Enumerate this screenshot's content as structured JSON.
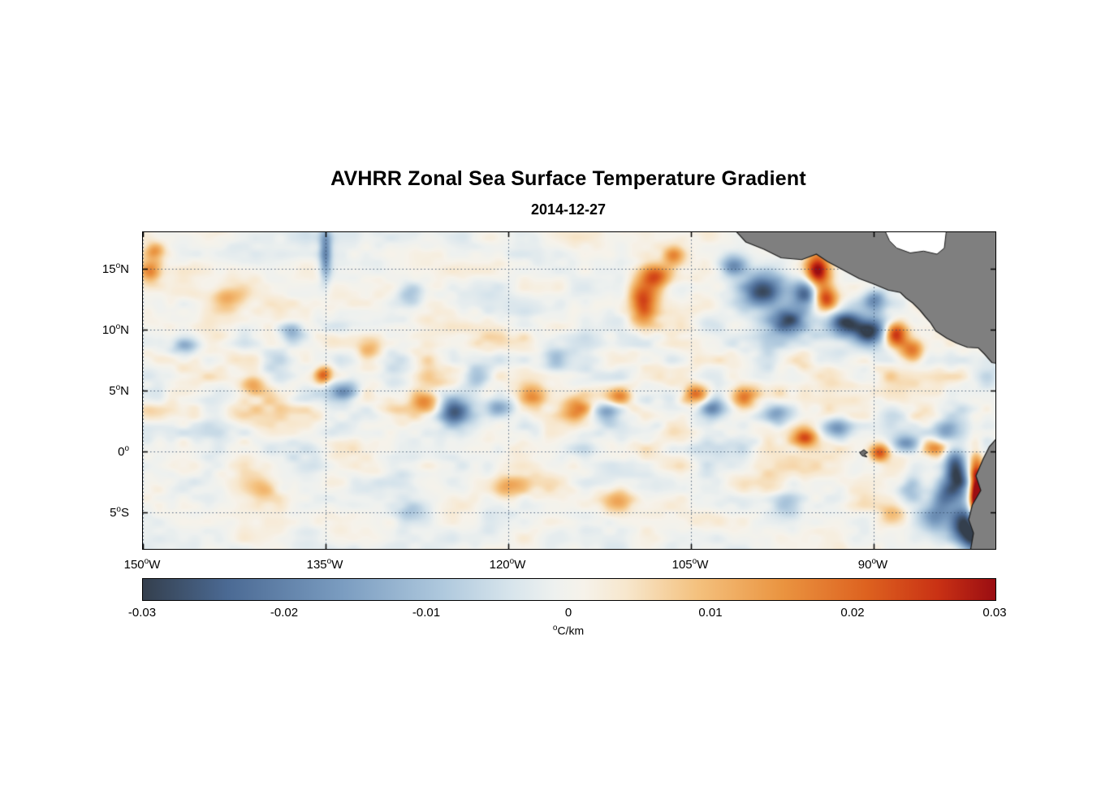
{
  "title": "AVHRR Zonal Sea Surface Temperature Gradient",
  "subtitle": "2014-12-27",
  "chart_data": {
    "type": "heatmap",
    "title": "AVHRR Zonal Sea Surface Temperature Gradient",
    "date": "2014-12-27",
    "grid": true,
    "deg_symbol": "o",
    "x_range": [
      -150,
      -80
    ],
    "y_range": [
      18,
      -8
    ],
    "x_axis": {
      "ticks": [
        {
          "value": -150,
          "num": "150",
          "hemi": "W"
        },
        {
          "value": -135,
          "num": "135",
          "hemi": "W"
        },
        {
          "value": -120,
          "num": "120",
          "hemi": "W"
        },
        {
          "value": -105,
          "num": "105",
          "hemi": "W"
        },
        {
          "value": -90,
          "num": "90",
          "hemi": "W"
        }
      ]
    },
    "y_axis": {
      "ticks": [
        {
          "value": 15,
          "num": "15",
          "hemi": "N"
        },
        {
          "value": 10,
          "num": "10",
          "hemi": "N"
        },
        {
          "value": 5,
          "num": "5",
          "hemi": "N"
        },
        {
          "value": 0,
          "num": "0",
          "hemi": ""
        },
        {
          "value": -5,
          "num": "5",
          "hemi": "S"
        }
      ]
    },
    "colorbar": {
      "range": [
        -0.03,
        0.03
      ],
      "ticks": [
        "-0.03",
        "-0.02",
        "-0.01",
        "0",
        "0.01",
        "0.02",
        "0.03"
      ],
      "unit_sup": "o",
      "unit_text": "C/km"
    },
    "colormap": [
      [
        -0.0315,
        "#343f4d"
      ],
      [
        -0.024,
        "#4b6a94"
      ],
      [
        -0.016,
        "#7a9cc0"
      ],
      [
        -0.009,
        "#aec8dd"
      ],
      [
        -0.004,
        "#d8e5ec"
      ],
      [
        -0.001,
        "#eef1ef"
      ],
      [
        0.001,
        "#f6f2ea"
      ],
      [
        0.004,
        "#f7e7cd"
      ],
      [
        0.009,
        "#f4c17e"
      ],
      [
        0.015,
        "#ea9440"
      ],
      [
        0.021,
        "#dd611f"
      ],
      [
        0.026,
        "#c93114"
      ],
      [
        0.0315,
        "#9a0d12"
      ]
    ],
    "land_color": "#7f7f7f",
    "coast_color": "#1a1a1a",
    "noise": {
      "octaves": [
        [
          38,
          22,
          0.5
        ],
        [
          76,
          44,
          0.3
        ],
        [
          15,
          10,
          0.2
        ]
      ],
      "base_amp": 0.0062,
      "equator_boost": 0.8
    },
    "blobs": [
      [
        -149.4,
        14.8,
        0.7,
        0.7,
        0.02
      ],
      [
        -149.0,
        16.5,
        0.6,
        0.5,
        0.014
      ],
      [
        -146.5,
        8.5,
        0.8,
        0.6,
        -0.012
      ],
      [
        -143.0,
        12.5,
        0.9,
        0.7,
        0.011
      ],
      [
        -141.0,
        5.5,
        0.8,
        0.6,
        0.013
      ],
      [
        -137.8,
        9.8,
        0.7,
        0.6,
        -0.013
      ],
      [
        -135.0,
        16.2,
        0.35,
        1.6,
        -0.018
      ],
      [
        -135.2,
        6.3,
        0.5,
        0.5,
        0.02
      ],
      [
        -133.5,
        5.0,
        0.8,
        0.7,
        -0.015
      ],
      [
        -131.5,
        8.6,
        0.7,
        0.6,
        0.011
      ],
      [
        -128.0,
        13.0,
        0.8,
        0.7,
        -0.011
      ],
      [
        -126.8,
        4.2,
        0.8,
        0.6,
        0.019
      ],
      [
        -124.5,
        3.2,
        0.9,
        0.8,
        -0.022
      ],
      [
        -122.6,
        6.1,
        0.7,
        0.6,
        -0.013
      ],
      [
        -120.8,
        3.6,
        0.8,
        0.6,
        -0.016
      ],
      [
        -118.0,
        4.6,
        0.8,
        0.6,
        0.015
      ],
      [
        -116.1,
        7.5,
        0.7,
        0.6,
        -0.012
      ],
      [
        -114.3,
        3.4,
        0.9,
        0.7,
        0.022
      ],
      [
        -112.0,
        3.2,
        0.8,
        0.6,
        -0.013
      ],
      [
        -110.8,
        4.5,
        0.7,
        0.5,
        0.012
      ],
      [
        -107.9,
        14.4,
        0.9,
        0.7,
        0.02
      ],
      [
        -108.9,
        12.2,
        0.8,
        1.1,
        0.026
      ],
      [
        -106.4,
        16.1,
        0.6,
        0.6,
        0.013
      ],
      [
        -101.5,
        15.2,
        0.8,
        0.6,
        -0.02
      ],
      [
        -99.0,
        13.2,
        1.2,
        1.0,
        -0.03
      ],
      [
        -97.0,
        10.8,
        1.0,
        0.8,
        -0.026
      ],
      [
        -95.5,
        12.9,
        0.8,
        0.8,
        -0.024
      ],
      [
        -94.6,
        14.9,
        0.7,
        1.0,
        0.032
      ],
      [
        -94.0,
        12.6,
        0.7,
        0.7,
        0.024
      ],
      [
        -92.3,
        10.6,
        0.9,
        0.7,
        -0.026
      ],
      [
        -90.3,
        9.8,
        1.0,
        0.8,
        -0.03
      ],
      [
        -90.0,
        12.4,
        0.7,
        0.6,
        -0.017
      ],
      [
        -88.2,
        9.6,
        0.7,
        0.7,
        0.03
      ],
      [
        -86.8,
        8.2,
        0.7,
        0.6,
        0.019
      ],
      [
        -104.6,
        4.6,
        0.8,
        0.6,
        0.022
      ],
      [
        -103.2,
        3.6,
        0.8,
        0.7,
        -0.02
      ],
      [
        -100.6,
        4.4,
        0.7,
        0.6,
        0.013
      ],
      [
        -98.0,
        3.0,
        0.8,
        0.6,
        -0.014
      ],
      [
        -95.6,
        1.1,
        0.7,
        0.5,
        0.019
      ],
      [
        -93.0,
        2.0,
        0.8,
        0.6,
        -0.013
      ],
      [
        -89.5,
        -0.1,
        0.6,
        0.5,
        0.022
      ],
      [
        -87.3,
        0.6,
        0.8,
        0.5,
        -0.017
      ],
      [
        -85.0,
        0.3,
        0.7,
        0.5,
        0.013
      ],
      [
        -84.0,
        1.6,
        0.7,
        0.6,
        -0.012
      ],
      [
        -83.4,
        -1.0,
        0.6,
        0.9,
        -0.02
      ],
      [
        -83.0,
        -2.4,
        0.7,
        1.2,
        -0.024
      ],
      [
        -84.2,
        -3.6,
        0.7,
        1.0,
        -0.018
      ],
      [
        -85.2,
        -5.5,
        0.8,
        0.8,
        -0.015
      ],
      [
        -82.6,
        -5.9,
        0.9,
        0.9,
        -0.03
      ],
      [
        -81.6,
        -7.2,
        0.8,
        0.8,
        -0.028
      ],
      [
        -81.6,
        -3.0,
        0.4,
        1.6,
        0.034
      ],
      [
        -81.3,
        -5.0,
        0.4,
        1.2,
        0.034
      ],
      [
        -86.9,
        -3.0,
        0.7,
        0.7,
        -0.012
      ],
      [
        -88.5,
        -5.0,
        0.8,
        0.7,
        0.011
      ],
      [
        -120.0,
        -3.0,
        0.9,
        0.7,
        0.01
      ],
      [
        -128.0,
        -5.0,
        0.9,
        0.7,
        -0.01
      ],
      [
        -111.0,
        -4.0,
        0.9,
        0.7,
        0.01
      ],
      [
        -97.0,
        -4.2,
        0.9,
        0.8,
        -0.01
      ],
      [
        -140.0,
        -3.0,
        0.9,
        0.7,
        0.01
      ]
    ],
    "land_polygons": {
      "central_america": [
        [
          -101.6,
          18.4
        ],
        [
          -100.5,
          17.2
        ],
        [
          -99.0,
          16.6
        ],
        [
          -97.6,
          15.9
        ],
        [
          -95.9,
          15.75
        ],
        [
          -94.7,
          16.2
        ],
        [
          -93.8,
          15.6
        ],
        [
          -92.5,
          14.9
        ],
        [
          -91.2,
          14.2
        ],
        [
          -90.0,
          13.75
        ],
        [
          -88.8,
          13.25
        ],
        [
          -87.8,
          13.05
        ],
        [
          -87.35,
          12.6
        ],
        [
          -86.8,
          12.2
        ],
        [
          -86.2,
          11.6
        ],
        [
          -85.75,
          11.05
        ],
        [
          -85.35,
          10.6
        ],
        [
          -84.9,
          9.9
        ],
        [
          -84.0,
          9.3
        ],
        [
          -83.2,
          8.9
        ],
        [
          -82.3,
          8.55
        ],
        [
          -81.4,
          8.5
        ],
        [
          -80.9,
          8.0
        ],
        [
          -80.3,
          7.3
        ],
        [
          -79.7,
          7.2
        ],
        [
          -79.7,
          18.4
        ]
      ],
      "gulf_nodata": [
        [
          -89.2,
          18.4
        ],
        [
          -88.7,
          17.3
        ],
        [
          -88.1,
          16.7
        ],
        [
          -87.0,
          16.3
        ],
        [
          -85.9,
          16.45
        ],
        [
          -84.8,
          16.2
        ],
        [
          -84.2,
          16.7
        ],
        [
          -84.0,
          18.4
        ]
      ],
      "south_america": [
        [
          -79.7,
          1.3
        ],
        [
          -80.5,
          0.4
        ],
        [
          -81.0,
          -0.6
        ],
        [
          -81.6,
          -2.0
        ],
        [
          -81.2,
          -3.2
        ],
        [
          -81.9,
          -4.4
        ],
        [
          -82.2,
          -5.6
        ],
        [
          -81.8,
          -6.7
        ],
        [
          -82.1,
          -8.4
        ],
        [
          -79.7,
          -8.4
        ]
      ],
      "galapagos": [
        [
          -91.15,
          -0.1
        ],
        [
          -90.8,
          0.15
        ],
        [
          -90.5,
          -0.1
        ],
        [
          -90.75,
          -0.2
        ],
        [
          -90.55,
          -0.45
        ],
        [
          -90.95,
          -0.35
        ]
      ]
    }
  }
}
